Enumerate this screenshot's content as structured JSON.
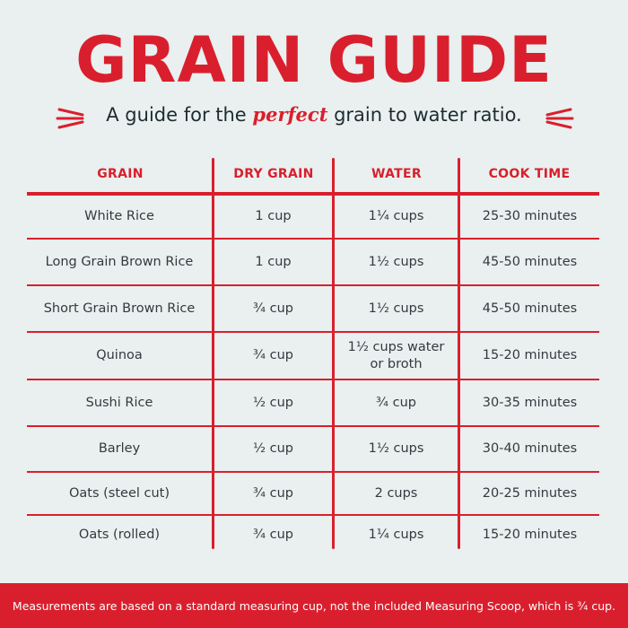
{
  "title": "GRAIN GUIDE",
  "subtitle": {
    "before": "A guide for the ",
    "emphasis": "perfect",
    "after": " grain to water ratio."
  },
  "colors": {
    "accent": "#d91f2d",
    "background": "#e9f0ef",
    "text": "#333a40"
  },
  "table": {
    "headers": [
      "GRAIN",
      "DRY GRAIN",
      "WATER",
      "COOK TIME"
    ],
    "rows": [
      [
        "White Rice",
        "1 cup",
        "1¼ cups",
        "25-30 minutes"
      ],
      [
        "Long Grain Brown Rice",
        "1 cup",
        "1½ cups",
        "45-50 minutes"
      ],
      [
        "Short Grain Brown Rice",
        "¾ cup",
        "1½ cups",
        "45-50 minutes"
      ],
      [
        "Quinoa",
        "¾ cup",
        "1½ cups water or broth",
        "15-20 minutes"
      ],
      [
        "Sushi Rice",
        "½ cup",
        "¾ cup",
        "30-35 minutes"
      ],
      [
        "Barley",
        "½ cup",
        "1½ cups",
        "30-40 minutes"
      ],
      [
        "Oats (steel cut)",
        "¾ cup",
        "2 cups",
        "20-25 minutes"
      ],
      [
        "Oats (rolled)",
        "¾ cup",
        "1¼ cups",
        "15-20 minutes"
      ]
    ]
  },
  "footer": "Measurements are based on a standard measuring cup, not the included Measuring Scoop, which is ¾ cup."
}
